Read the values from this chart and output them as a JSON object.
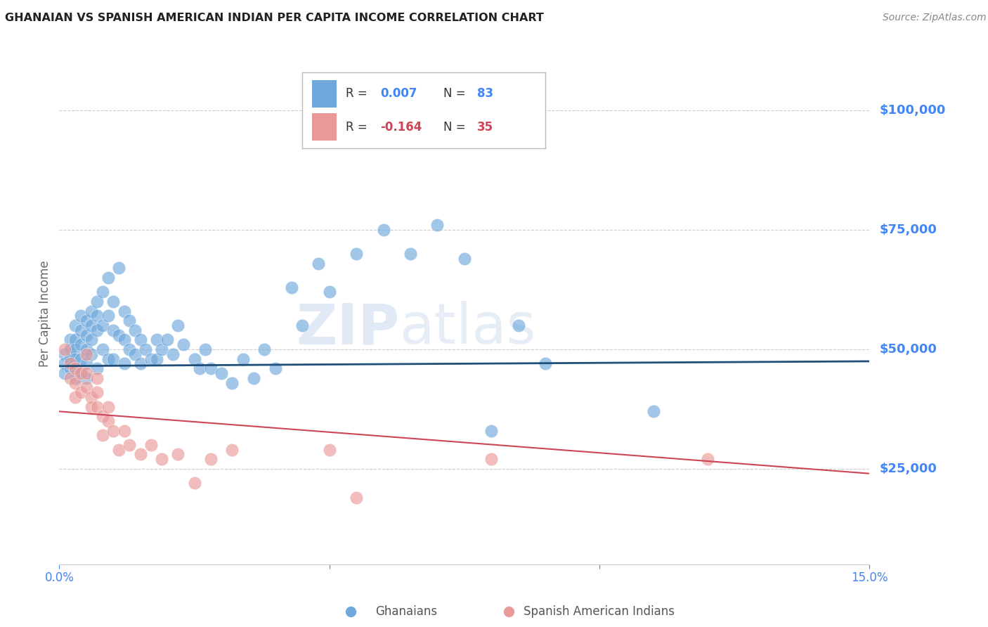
{
  "title": "GHANAIAN VS SPANISH AMERICAN INDIAN PER CAPITA INCOME CORRELATION CHART",
  "source": "Source: ZipAtlas.com",
  "ylabel": "Per Capita Income",
  "yticks": [
    25000,
    50000,
    75000,
    100000
  ],
  "ytick_labels": [
    "$25,000",
    "$50,000",
    "$75,000",
    "$100,000"
  ],
  "xlim": [
    0.0,
    0.15
  ],
  "ylim": [
    5000,
    110000
  ],
  "blue_color": "#6fa8dc",
  "pink_color": "#ea9999",
  "blue_line_color": "#1f4e79",
  "pink_line_color": "#cc4455",
  "axis_label_color": "#4285f4",
  "watermark_zip": "ZIP",
  "watermark_atlas": "atlas",
  "blue_scatter_x": [
    0.001,
    0.001,
    0.001,
    0.002,
    0.002,
    0.002,
    0.002,
    0.003,
    0.003,
    0.003,
    0.003,
    0.003,
    0.003,
    0.004,
    0.004,
    0.004,
    0.004,
    0.004,
    0.005,
    0.005,
    0.005,
    0.005,
    0.005,
    0.006,
    0.006,
    0.006,
    0.006,
    0.007,
    0.007,
    0.007,
    0.007,
    0.008,
    0.008,
    0.008,
    0.009,
    0.009,
    0.009,
    0.01,
    0.01,
    0.01,
    0.011,
    0.011,
    0.012,
    0.012,
    0.012,
    0.013,
    0.013,
    0.014,
    0.014,
    0.015,
    0.015,
    0.016,
    0.017,
    0.018,
    0.018,
    0.019,
    0.02,
    0.021,
    0.022,
    0.023,
    0.025,
    0.026,
    0.027,
    0.028,
    0.03,
    0.032,
    0.034,
    0.036,
    0.038,
    0.04,
    0.043,
    0.045,
    0.048,
    0.05,
    0.055,
    0.06,
    0.065,
    0.07,
    0.075,
    0.08,
    0.085,
    0.09,
    0.11
  ],
  "blue_scatter_y": [
    49000,
    47000,
    45000,
    52000,
    50000,
    48000,
    46000,
    55000,
    52000,
    50000,
    48000,
    46000,
    44000,
    57000,
    54000,
    51000,
    48000,
    45000,
    56000,
    53000,
    50000,
    47000,
    44000,
    58000,
    55000,
    52000,
    49000,
    60000,
    57000,
    54000,
    46000,
    62000,
    55000,
    50000,
    65000,
    57000,
    48000,
    60000,
    54000,
    48000,
    67000,
    53000,
    58000,
    52000,
    47000,
    56000,
    50000,
    54000,
    49000,
    52000,
    47000,
    50000,
    48000,
    52000,
    48000,
    50000,
    52000,
    49000,
    55000,
    51000,
    48000,
    46000,
    50000,
    46000,
    45000,
    43000,
    48000,
    44000,
    50000,
    46000,
    63000,
    55000,
    68000,
    62000,
    70000,
    75000,
    70000,
    76000,
    69000,
    33000,
    55000,
    47000,
    37000
  ],
  "pink_scatter_x": [
    0.001,
    0.002,
    0.002,
    0.003,
    0.003,
    0.003,
    0.004,
    0.004,
    0.005,
    0.005,
    0.005,
    0.006,
    0.006,
    0.007,
    0.007,
    0.007,
    0.008,
    0.008,
    0.009,
    0.009,
    0.01,
    0.011,
    0.012,
    0.013,
    0.015,
    0.017,
    0.019,
    0.022,
    0.025,
    0.028,
    0.032,
    0.05,
    0.055,
    0.08,
    0.12
  ],
  "pink_scatter_y": [
    50000,
    47000,
    44000,
    46000,
    43000,
    40000,
    45000,
    41000,
    49000,
    45000,
    42000,
    40000,
    38000,
    44000,
    41000,
    38000,
    36000,
    32000,
    38000,
    35000,
    33000,
    29000,
    33000,
    30000,
    28000,
    30000,
    27000,
    28000,
    22000,
    27000,
    29000,
    29000,
    19000,
    27000,
    27000
  ],
  "blue_trendline_y0": 46500,
  "blue_trendline_y1": 47500,
  "pink_trendline_y0": 37000,
  "pink_trendline_y1": 24000
}
